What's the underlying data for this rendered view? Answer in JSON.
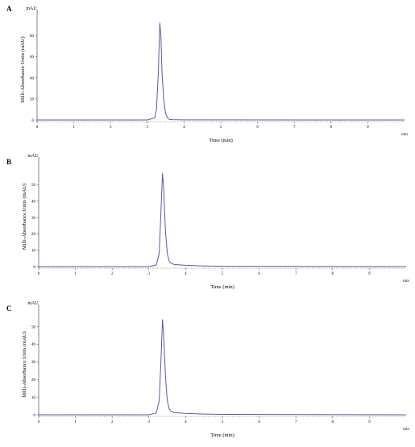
{
  "chart_data": [
    {
      "type": "line",
      "panel_label": "A",
      "ylabel": "Milli-Absorbance Units (mAU)",
      "yunit": "mAU",
      "xlabel": "Time (min)",
      "xunit": "min",
      "xlim": [
        0,
        10
      ],
      "ylim": [
        -2,
        97
      ],
      "xticks": [
        0,
        1,
        2,
        3,
        4,
        5,
        6,
        7,
        8,
        9
      ],
      "yticks": [
        0,
        20,
        40,
        60,
        80
      ],
      "line_color": "#5a5aa8",
      "series": [
        {
          "x": [
            0,
            3.0,
            3.2,
            3.25,
            3.3,
            3.34,
            3.37,
            3.4,
            3.45,
            3.5,
            3.55,
            3.6,
            3.7,
            4.0,
            10
          ],
          "y": [
            0,
            0,
            2,
            10,
            45,
            92,
            80,
            45,
            18,
            6,
            2,
            0.5,
            0.3,
            0.1,
            0
          ]
        }
      ]
    },
    {
      "type": "line",
      "panel_label": "B",
      "ylabel": "Milli-Absorbance Units (mAU)",
      "yunit": "mAU",
      "xlabel": "Time (min)",
      "xunit": "min",
      "xlim": [
        0,
        10
      ],
      "ylim": [
        -2,
        62
      ],
      "xticks": [
        0,
        1,
        2,
        3,
        4,
        5,
        6,
        7,
        8,
        9
      ],
      "yticks": [
        0,
        10,
        20,
        30,
        40,
        50
      ],
      "line_color": "#5a5aa8",
      "series": [
        {
          "x": [
            0,
            3.0,
            3.2,
            3.28,
            3.33,
            3.37,
            3.4,
            3.45,
            3.5,
            3.55,
            3.6,
            3.7,
            4.0,
            4.5,
            5.0,
            10
          ],
          "y": [
            0,
            0,
            1,
            8,
            35,
            57,
            48,
            22,
            8,
            3.5,
            2,
            1.2,
            0.8,
            0.4,
            0.2,
            0
          ]
        }
      ]
    },
    {
      "type": "line",
      "panel_label": "C",
      "ylabel": "Milli-Absorbance Units (mAU)",
      "yunit": "mAU",
      "xlabel": "Time (min)",
      "xunit": "min",
      "xlim": [
        0,
        10
      ],
      "ylim": [
        -2,
        58
      ],
      "xticks": [
        0,
        1,
        2,
        3,
        4,
        5,
        6,
        7,
        8,
        9
      ],
      "yticks": [
        0,
        10,
        20,
        30,
        40,
        50
      ],
      "line_color": "#5a5aa8",
      "series": [
        {
          "x": [
            0,
            3.0,
            3.2,
            3.28,
            3.33,
            3.37,
            3.4,
            3.45,
            3.5,
            3.55,
            3.6,
            3.7,
            4.0,
            4.5,
            5.0,
            10
          ],
          "y": [
            0,
            0,
            1,
            8,
            32,
            54,
            46,
            22,
            8,
            3.5,
            2,
            1.2,
            0.8,
            0.4,
            0.2,
            0
          ]
        }
      ]
    }
  ]
}
